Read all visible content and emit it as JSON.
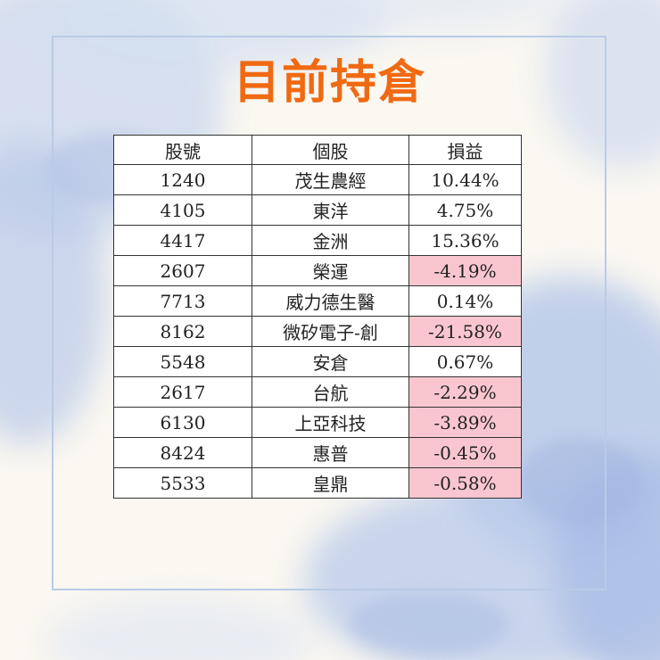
{
  "title": "目前持倉",
  "colors": {
    "title": "#f06a12",
    "negative_bg": "#f9c6cf",
    "negative_text": "#d4334d",
    "frame": "#b9cbe6"
  },
  "table": {
    "headers": [
      "股號",
      "個股",
      "損益"
    ],
    "rows": [
      {
        "code": "1240",
        "name": "茂生農經",
        "pnl": "10.44%",
        "negative": false
      },
      {
        "code": "4105",
        "name": "東洋",
        "pnl": "4.75%",
        "negative": false
      },
      {
        "code": "4417",
        "name": "金洲",
        "pnl": "15.36%",
        "negative": false
      },
      {
        "code": "2607",
        "name": "榮運",
        "pnl": "-4.19%",
        "negative": true
      },
      {
        "code": "7713",
        "name": "威力德生醫",
        "pnl": "0.14%",
        "negative": false
      },
      {
        "code": "8162",
        "name": "微矽電子-創",
        "pnl": "-21.58%",
        "negative": true
      },
      {
        "code": "5548",
        "name": "安倉",
        "pnl": "0.67%",
        "negative": false
      },
      {
        "code": "2617",
        "name": "台航",
        "pnl": "-2.29%",
        "negative": true
      },
      {
        "code": "6130",
        "name": "上亞科技",
        "pnl": "-3.89%",
        "negative": true
      },
      {
        "code": "8424",
        "name": "惠普",
        "pnl": "-0.45%",
        "negative": true
      },
      {
        "code": "5533",
        "name": "皇鼎",
        "pnl": "-0.58%",
        "negative": true
      }
    ]
  }
}
